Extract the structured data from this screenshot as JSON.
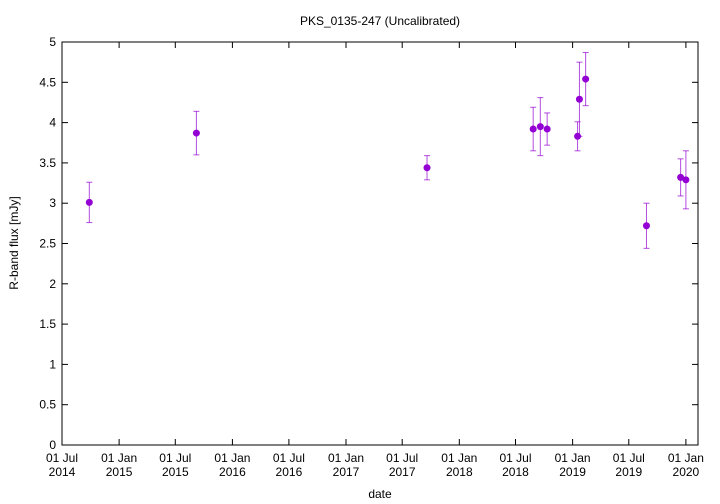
{
  "chart_data": {
    "type": "errorbar-scatter",
    "title": "PKS_0135-247 (Uncalibrated)",
    "xlabel": "date",
    "ylabel": "R-band flux [mJy]",
    "xlim": [
      "2014-07-01",
      "2020-02-09"
    ],
    "xticks": [
      {
        "value": "2014-07-01",
        "label": "01 Jul\n2014"
      },
      {
        "value": "2015-01-01",
        "label": "01 Jan\n2015"
      },
      {
        "value": "2015-07-01",
        "label": "01 Jul\n2015"
      },
      {
        "value": "2016-01-01",
        "label": "01 Jan\n2016"
      },
      {
        "value": "2016-07-01",
        "label": "01 Jul\n2016"
      },
      {
        "value": "2017-01-01",
        "label": "01 Jan\n2017"
      },
      {
        "value": "2017-07-01",
        "label": "01 Jul\n2017"
      },
      {
        "value": "2018-01-01",
        "label": "01 Jan\n2018"
      },
      {
        "value": "2018-07-01",
        "label": "01 Jul\n2018"
      },
      {
        "value": "2019-01-01",
        "label": "01 Jan\n2019"
      },
      {
        "value": "2019-07-01",
        "label": "01 Jul\n2019"
      },
      {
        "value": "2020-01-01",
        "label": "01 Jan\n2020"
      }
    ],
    "ylim": [
      0,
      5
    ],
    "yticks": [
      0,
      0.5,
      1,
      1.5,
      2,
      2.5,
      3,
      3.5,
      4,
      4.5,
      5
    ],
    "series": [
      {
        "color": "#9400d3",
        "x": [
          "2014-09-27",
          "2015-09-07",
          "2017-09-19",
          "2018-08-27",
          "2018-09-19",
          "2018-10-11",
          "2019-01-17",
          "2019-01-23",
          "2019-02-12",
          "2019-08-27",
          "2019-12-15",
          "2020-01-01"
        ],
        "values": [
          3.01,
          3.87,
          3.44,
          3.92,
          3.95,
          3.92,
          3.83,
          4.29,
          4.54,
          2.72,
          3.32,
          3.29
        ],
        "errors": [
          0.25,
          0.27,
          0.15,
          0.27,
          0.36,
          0.2,
          0.18,
          0.46,
          0.33,
          0.28,
          0.23,
          0.36
        ]
      }
    ]
  }
}
